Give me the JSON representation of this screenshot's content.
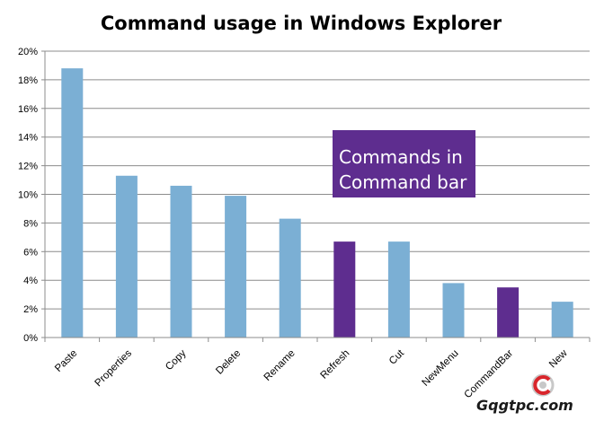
{
  "chart_data": {
    "type": "bar",
    "title": "Command usage in Windows Explorer",
    "xlabel": "",
    "ylabel": "",
    "ylim": [
      0,
      20
    ],
    "yticks": [
      "0%",
      "2%",
      "4%",
      "6%",
      "8%",
      "10%",
      "12%",
      "14%",
      "16%",
      "18%",
      "20%"
    ],
    "grid": true,
    "categories": [
      "Paste",
      "Properties",
      "Copy",
      "Delete",
      "Rename",
      "Refresh",
      "Cut",
      "NewMenu",
      "CommandBar",
      "New"
    ],
    "values": [
      18.8,
      11.3,
      10.6,
      9.9,
      8.3,
      6.7,
      6.7,
      3.8,
      3.5,
      2.5
    ],
    "highlighted": [
      false,
      false,
      false,
      false,
      false,
      true,
      false,
      false,
      true,
      false
    ],
    "colors": {
      "default_bar": "#7bafd4",
      "highlight_bar": "#5e2d8f",
      "annotation_box": "#5e2d8f"
    },
    "annotation": {
      "lines": [
        "Commands in",
        "Command bar"
      ]
    }
  },
  "watermark": {
    "text": "Gqgtpc.com"
  }
}
